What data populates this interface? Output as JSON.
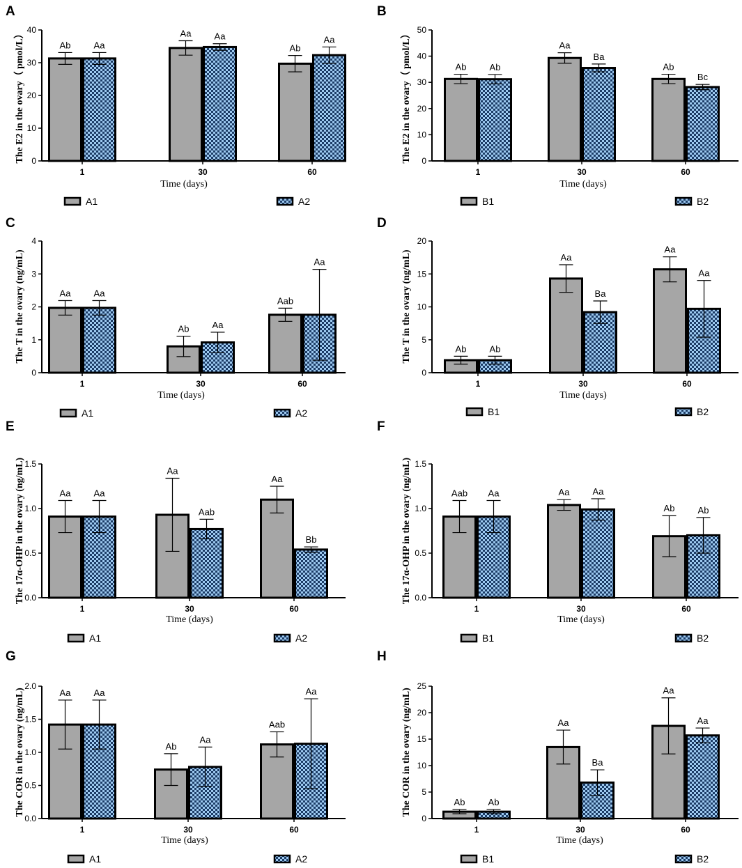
{
  "colors": {
    "bar1": "#a6a6a6",
    "check_light": "#9dc9f0",
    "check_dark": "#1c3c66",
    "axis": "#000000"
  },
  "chart_data": [
    {
      "panel": "A",
      "type": "bar",
      "categories": [
        "1",
        "30",
        "60"
      ],
      "xlabel": "Time (days)",
      "ylabel": "The E2 in the ovary（ pmol/L）",
      "ylim": [
        0,
        40
      ],
      "yticks": [
        "0",
        "10",
        "20",
        "30",
        "40"
      ],
      "series": [
        {
          "name": "A1",
          "values": [
            31.3,
            34.5,
            29.7
          ],
          "errors": [
            1.8,
            2.2,
            2.5
          ],
          "labels": [
            "Ab",
            "Aa",
            "Ab"
          ]
        },
        {
          "name": "A2",
          "values": [
            31.3,
            34.8,
            32.3
          ],
          "errors": [
            1.8,
            1.0,
            2.5
          ],
          "labels": [
            "Aa",
            "Aa",
            "Aa"
          ]
        }
      ]
    },
    {
      "panel": "B",
      "type": "bar",
      "categories": [
        "1",
        "30",
        "60"
      ],
      "xlabel": "Time (days)",
      "ylabel": "The E2 in the ovary（ pmol/L）",
      "ylim": [
        0,
        50
      ],
      "yticks": [
        "0",
        "10",
        "20",
        "30",
        "40",
        "50"
      ],
      "series": [
        {
          "name": "B1",
          "values": [
            31.3,
            39.3,
            31.3
          ],
          "errors": [
            1.8,
            2.0,
            1.8
          ],
          "labels": [
            "Ab",
            "Aa",
            "Ab"
          ]
        },
        {
          "name": "B2",
          "values": [
            31.2,
            35.5,
            28.2
          ],
          "errors": [
            1.8,
            1.5,
            1.0
          ],
          "labels": [
            "Ab",
            "Ba",
            "Bc"
          ]
        }
      ]
    },
    {
      "panel": "C",
      "type": "bar",
      "categories": [
        "1",
        "30",
        "60"
      ],
      "xlabel": "Time (days)",
      "ylabel": "The T in the ovary (ng/mL)",
      "ylim": [
        0,
        4
      ],
      "yticks": [
        "0",
        "1",
        "2",
        "3",
        "4"
      ],
      "series": [
        {
          "name": "A1",
          "values": [
            1.97,
            0.8,
            1.76
          ],
          "errors": [
            0.22,
            0.31,
            0.2
          ],
          "labels": [
            "Aa",
            "Ab",
            "Aab"
          ]
        },
        {
          "name": "A2",
          "values": [
            1.97,
            0.92,
            1.76
          ],
          "errors": [
            0.22,
            0.31,
            1.38
          ],
          "labels": [
            "Aa",
            "Aa",
            "Aa"
          ]
        }
      ]
    },
    {
      "panel": "D",
      "type": "bar",
      "categories": [
        "1",
        "30",
        "60"
      ],
      "xlabel": "Time (days)",
      "ylabel": "The T in the ovary (ng/mL)",
      "ylim": [
        0,
        20
      ],
      "yticks": [
        "0",
        "5",
        "10",
        "15",
        "20"
      ],
      "series": [
        {
          "name": "B1",
          "values": [
            1.9,
            14.3,
            15.7
          ],
          "errors": [
            0.6,
            2.1,
            1.9
          ],
          "labels": [
            "Ab",
            "Aa",
            "Aa"
          ]
        },
        {
          "name": "B2",
          "values": [
            1.9,
            9.2,
            9.7
          ],
          "errors": [
            0.6,
            1.7,
            4.3
          ],
          "labels": [
            "Ab",
            "Ba",
            "Aa"
          ]
        }
      ]
    },
    {
      "panel": "E",
      "type": "bar",
      "categories": [
        "1",
        "30",
        "60"
      ],
      "xlabel": "Time (days)",
      "ylabel": "The 17α-OHP in the ovary (ng/mL)",
      "ylim": [
        0,
        1.5
      ],
      "yticks": [
        "0.0",
        "0.5",
        "1.0",
        "1.5"
      ],
      "series": [
        {
          "name": "A1",
          "values": [
            0.91,
            0.93,
            1.1
          ],
          "errors": [
            0.18,
            0.41,
            0.15
          ],
          "labels": [
            "Aa",
            "Aa",
            "Aa"
          ]
        },
        {
          "name": "A2",
          "values": [
            0.91,
            0.77,
            0.54
          ],
          "errors": [
            0.18,
            0.11,
            0.03
          ],
          "labels": [
            "Aa",
            "Aab",
            "Bb"
          ]
        }
      ]
    },
    {
      "panel": "F",
      "type": "bar",
      "categories": [
        "1",
        "30",
        "60"
      ],
      "xlabel": "Time (days)",
      "ylabel": "The 17α-OHP in the ovary (ng/mL)",
      "ylim": [
        0,
        1.5
      ],
      "yticks": [
        "0.0",
        "0.5",
        "1.0",
        "1.5"
      ],
      "series": [
        {
          "name": "B1",
          "values": [
            0.91,
            1.04,
            0.69
          ],
          "errors": [
            0.18,
            0.06,
            0.23
          ],
          "labels": [
            "Aab",
            "Aa",
            "Ab"
          ]
        },
        {
          "name": "B2",
          "values": [
            0.91,
            0.99,
            0.7
          ],
          "errors": [
            0.18,
            0.12,
            0.2
          ],
          "labels": [
            "Aa",
            "Aa",
            "Ab"
          ]
        }
      ]
    },
    {
      "panel": "G",
      "type": "bar",
      "categories": [
        "1",
        "30",
        "60"
      ],
      "xlabel": "Time (days)",
      "ylabel": "The COR in the ovary (ng/mL)",
      "ylim": [
        0,
        2.0
      ],
      "yticks": [
        "0.0",
        "0.5",
        "1.0",
        "1.5",
        "2.0"
      ],
      "series": [
        {
          "name": "A1",
          "values": [
            1.42,
            0.74,
            1.12
          ],
          "errors": [
            0.37,
            0.24,
            0.19
          ],
          "labels": [
            "Aa",
            "Ab",
            "Aab"
          ]
        },
        {
          "name": "A2",
          "values": [
            1.42,
            0.78,
            1.13
          ],
          "errors": [
            0.37,
            0.3,
            0.68
          ],
          "labels": [
            "Aa",
            "Aa",
            "Aa"
          ]
        }
      ]
    },
    {
      "panel": "H",
      "type": "bar",
      "categories": [
        "1",
        "30",
        "60"
      ],
      "xlabel": "Time (days)",
      "ylabel": "The COR in the ovary (ng/mL)",
      "ylim": [
        0,
        25
      ],
      "yticks": [
        "0",
        "5",
        "10",
        "15",
        "20",
        "25"
      ],
      "series": [
        {
          "name": "B1",
          "values": [
            1.3,
            13.5,
            17.5
          ],
          "errors": [
            0.4,
            3.2,
            5.3
          ],
          "labels": [
            "Ab",
            "Aa",
            "Aa"
          ]
        },
        {
          "name": "B2",
          "values": [
            1.3,
            6.8,
            15.7
          ],
          "errors": [
            0.4,
            2.4,
            1.4
          ],
          "labels": [
            "Ab",
            "Ba",
            "Aa"
          ]
        }
      ]
    }
  ]
}
